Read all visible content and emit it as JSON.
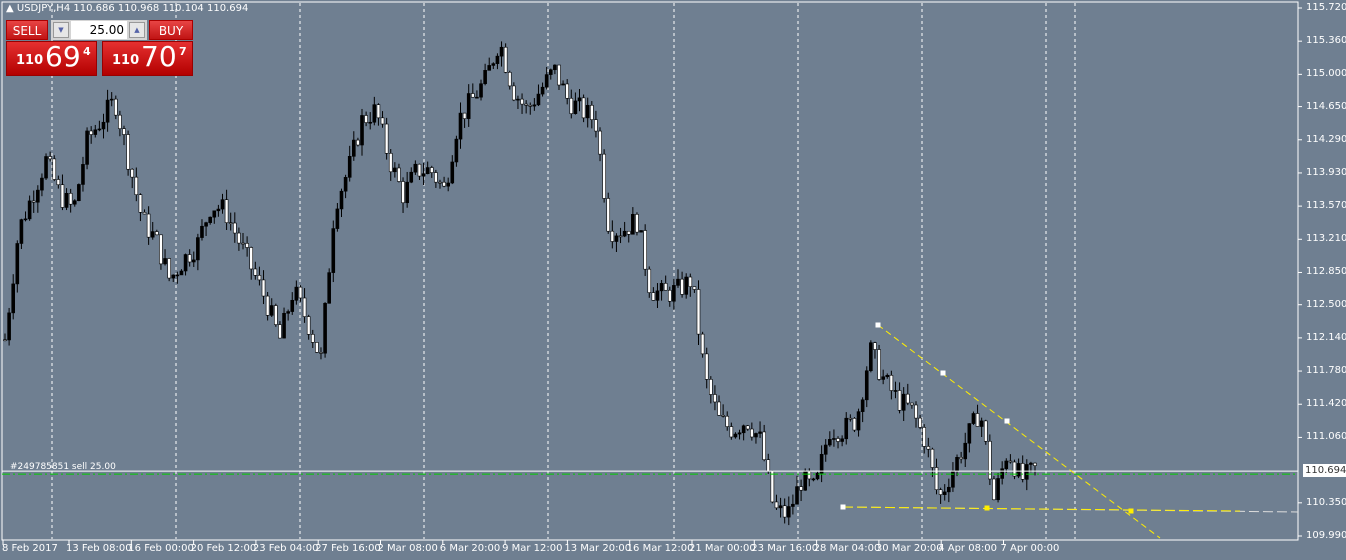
{
  "header": {
    "symbol_timeframe": "USDJPY,H4",
    "ohlc": "110.686 110.968 110.104 110.694"
  },
  "trade_panel": {
    "sell_label": "SELL",
    "buy_label": "BUY",
    "lot_value": "25.00",
    "sell_price": {
      "big": "110",
      "main": "69",
      "sup": "4"
    },
    "buy_price": {
      "big": "110",
      "main": "70",
      "sup": "7"
    }
  },
  "order_line": {
    "label": "#249785851 sell 25.00",
    "price": 110.694
  },
  "current_price_label": "110.694",
  "price_axis": {
    "min": 109.99,
    "max": 115.72,
    "ticks": [
      "115.720",
      "115.360",
      "115.000",
      "114.650",
      "114.290",
      "113.930",
      "113.570",
      "113.210",
      "112.850",
      "112.500",
      "112.140",
      "111.780",
      "111.420",
      "111.060",
      "110.350",
      "109.990"
    ]
  },
  "time_axis": {
    "labels": [
      "8 Feb 2017",
      "13 Feb 08:00",
      "16 Feb 00:00",
      "20 Feb 12:00",
      "23 Feb 04:00",
      "27 Feb 16:00",
      "2 Mar 08:00",
      "6 Mar 20:00",
      "9 Mar 12:00",
      "13 Mar 20:00",
      "16 Mar 12:00",
      "21 Mar 00:00",
      "23 Mar 16:00",
      "28 Mar 04:00",
      "30 Mar 20:00",
      "4 Apr 08:00",
      "7 Apr 00:00"
    ]
  },
  "colors": {
    "background": "#6f7f91",
    "candle": "#000000",
    "trendline": "#ffee00",
    "order_line": "#ffffff",
    "stop_line": "#00cc00"
  },
  "price_path": [
    112.12,
    113.31,
    113.69,
    114.07,
    113.69,
    113.53,
    114.29,
    114.5,
    114.72,
    114.07,
    113.42,
    113.2,
    112.77,
    112.99,
    113.15,
    113.58,
    113.53,
    113.2,
    112.88,
    112.55,
    112.12,
    112.66,
    112.33,
    111.9,
    113.58,
    113.96,
    114.5,
    114.61,
    114.07,
    113.69,
    113.96,
    113.96,
    113.74,
    114.5,
    114.72,
    114.94,
    115.37,
    114.83,
    114.61,
    114.83,
    115.05,
    114.72,
    114.61,
    114.5,
    113.31,
    113.31,
    113.42,
    112.66,
    112.61,
    112.66,
    112.77,
    111.68,
    111.25,
    111.14,
    111.25,
    111.03,
    110.27,
    110.22,
    110.6,
    110.49,
    111.14,
    111.14,
    111.25,
    112.01,
    111.68,
    111.47,
    111.36,
    111.03,
    110.38,
    110.71,
    111.03,
    111.36,
    110.38,
    110.92,
    110.6,
    110.71
  ]
}
